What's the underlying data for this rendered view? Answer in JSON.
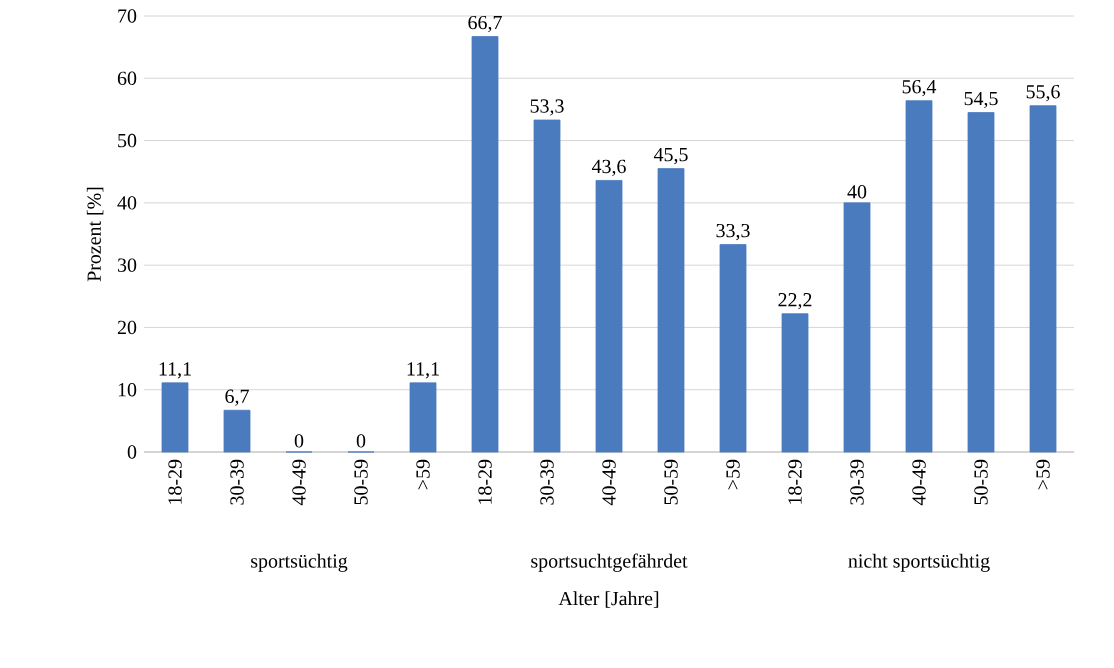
{
  "chart_data": {
    "type": "bar",
    "ylabel": "Prozent [%]",
    "xlabel": "Alter [Jahre]",
    "categories": [
      "18-29",
      "30-39",
      "40-49",
      "50-59",
      ">59",
      "18-29",
      "30-39",
      "40-49",
      "50-59",
      ">59",
      "18-29",
      "30-39",
      "40-49",
      "50-59",
      ">59"
    ],
    "values": [
      11.1,
      6.7,
      0,
      0,
      11.1,
      66.7,
      53.3,
      43.6,
      45.5,
      33.3,
      22.2,
      40,
      56.4,
      54.5,
      55.6
    ],
    "value_labels": [
      "11,1",
      "6,7",
      "0",
      "0",
      "11,1",
      "66,7",
      "53,3",
      "43,6",
      "45,5",
      "33,3",
      "22,2",
      "40",
      "56,4",
      "54,5",
      "55,6"
    ],
    "color": "#4a7bbf",
    "ylim": [
      0,
      70
    ],
    "yticks": [
      0,
      10,
      20,
      30,
      40,
      50,
      60,
      70
    ],
    "grid": "y",
    "annotations": [
      "sportsüchtig",
      "sportsuchtgefährdet",
      "nicht sportsüchtig"
    ]
  }
}
